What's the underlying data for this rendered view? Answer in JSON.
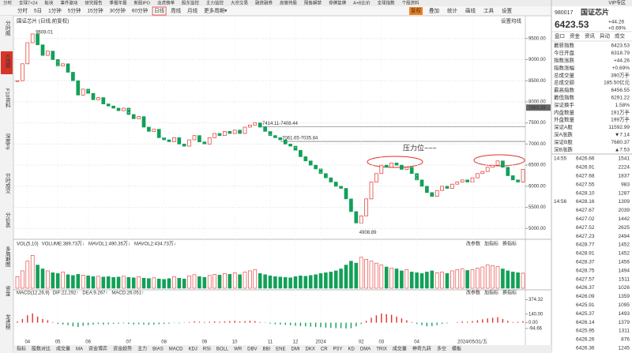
{
  "top_menu": [
    "分时",
    "全球7×24",
    "板块",
    "事件驱动",
    "研究报告",
    "季报年报",
    "新股IPO",
    "龙虎榜单",
    "股东监控",
    "主力监控",
    "大宗交易",
    "融资融券",
    "高管持股",
    "限售解禁",
    "停牌复牌",
    "A+B比价",
    "全球指数",
    "个股资料"
  ],
  "toolbar": {
    "periods": [
      "分时",
      "5日",
      "1分钟",
      "5分钟",
      "15分钟",
      "30分钟",
      "60分钟",
      "日线",
      "周线",
      "月线",
      "更多周期▾"
    ],
    "active_period": "日线",
    "tools": [
      "复权",
      "叠加",
      "统计",
      "画线",
      "工具",
      "设置"
    ],
    "active_tool": "复权",
    "vip": "VIP专区"
  },
  "sidebar": {
    "items": [
      "分时图",
      "K线图",
      "F10资料",
      "深度F9",
      "分时成交",
      "分价表",
      "多周期图",
      "资金",
      "龙虎榜"
    ],
    "active": "K线图"
  },
  "chart_data": {
    "type": "candlestick",
    "title": "国证芯片 (日线,前复权)",
    "settings_label": "设置均线",
    "up_color": "#e0302a",
    "down_color": "#12a058",
    "categories": [
      null,
      null,
      "04",
      null,
      null,
      null,
      null,
      null,
      "05",
      null,
      null,
      null,
      null,
      null,
      "06",
      null,
      null,
      null,
      null,
      null,
      null,
      null,
      "07",
      null,
      null,
      null,
      null,
      null,
      null,
      "08",
      null,
      null,
      null,
      null,
      null,
      null,
      null,
      "09",
      null,
      null,
      null,
      null,
      null,
      "10",
      null,
      null,
      null,
      null,
      null,
      null,
      "11",
      null,
      null,
      null,
      null,
      "12",
      null,
      null,
      null,
      null,
      "2024",
      null,
      null,
      null,
      null,
      null,
      null,
      null,
      "02",
      null,
      null,
      null,
      "03",
      null,
      null,
      null,
      null,
      null,
      null,
      "04",
      null,
      null,
      null,
      null,
      null,
      null,
      null,
      null,
      null,
      null,
      "2024/05/31/五",
      null,
      null,
      null,
      null,
      null,
      null,
      null,
      null,
      null,
      null
    ],
    "close": [
      8500,
      8900,
      9400,
      9608,
      9350,
      9100,
      9200,
      9000,
      8850,
      8900,
      8700,
      8500,
      8160,
      8300,
      8200,
      8050,
      8100,
      7950,
      7900,
      7850,
      7790,
      7850,
      7700,
      7600,
      7650,
      7400,
      7300,
      7350,
      7150,
      7100,
      7055,
      7150,
      7000,
      6950,
      7100,
      7200,
      7050,
      7000,
      7150,
      7250,
      7200,
      7300,
      7250,
      7330,
      7250,
      7400,
      7450,
      7500,
      7400,
      7300,
      7200,
      7150,
      7100,
      7000,
      6950,
      6850,
      6700,
      6600,
      6500,
      6410,
      6300,
      6200,
      6100,
      6000,
      5950,
      5700,
      5400,
      5130,
      5300,
      5700,
      6100,
      6300,
      6500,
      6450,
      6550,
      6500,
      6400,
      6450,
      6300,
      6150,
      6000,
      5850,
      5760,
      5900,
      6000,
      5950,
      6050,
      6100,
      6150,
      6100,
      6200,
      6300,
      6350,
      6450,
      6500,
      6600,
      6450,
      6250,
      6150,
      6100,
      6400
    ],
    "ylim": [
      4800,
      10000
    ],
    "yticks": [
      {
        "value": 9500,
        "label": "9500.00"
      },
      {
        "value": 9000,
        "label": "9000.00"
      },
      {
        "value": 8500,
        "label": "8500.00"
      },
      {
        "value": 8000,
        "label": "8000.00"
      },
      {
        "value": 7500,
        "label": "7500.00"
      },
      {
        "value": 7000,
        "label": "7000.00"
      },
      {
        "value": 6500,
        "label": "6500.00"
      },
      {
        "value": 6000,
        "label": "6000.00"
      },
      {
        "value": 5500,
        "label": "5500.00"
      },
      {
        "value": 5000,
        "label": "5000.00"
      }
    ],
    "grid": true,
    "cursor_price": 7863.29,
    "high_label": 9608.01,
    "low_label": 4908.89,
    "extreme_color": "#d04020",
    "hlines": [
      {
        "label": "7414.11-7408.44",
        "value": 7414.11
      },
      {
        "label": "7061.65-7035.84",
        "value": 7061.65
      }
    ],
    "note": "压力位~~~",
    "note_color": "#e0302a"
  },
  "volume_chart": {
    "type": "bar",
    "header": "VOL(5,10)",
    "items": [
      {
        "text": "VOLUME:389.73万↓",
        "color": "#333"
      },
      {
        "text": "MAVOL1:490.35万↓",
        "color": "#c040c0"
      },
      {
        "text": "MAVOL2:434.73万↓",
        "color": "#d08000"
      }
    ],
    "tools": [
      "改参数",
      "加指标",
      "换指标"
    ],
    "ylim": [
      0,
      1000
    ],
    "values": [
      300,
      450,
      700,
      850,
      600,
      500,
      450,
      400,
      380,
      420,
      350,
      330,
      360,
      340,
      320,
      300,
      310,
      290,
      300,
      280,
      290,
      310,
      280,
      270,
      300,
      260,
      250,
      270,
      240,
      230,
      250,
      300,
      260,
      240,
      320,
      350,
      300,
      280,
      330,
      360,
      340,
      380,
      360,
      400,
      350,
      420,
      450,
      480,
      380,
      350,
      320,
      300,
      290,
      280,
      270,
      300,
      320,
      310,
      330,
      350,
      380,
      400,
      420,
      450,
      500,
      600,
      700,
      650,
      800,
      750,
      700,
      650,
      600,
      550,
      520,
      500,
      450,
      480,
      420,
      400,
      380,
      420,
      450,
      400,
      420,
      380,
      450,
      480,
      500,
      460,
      480,
      520,
      550,
      600,
      580,
      560,
      500,
      450,
      420,
      400,
      390
    ]
  },
  "macd_chart": {
    "type": "bar",
    "header": "MACD(12,26,9)",
    "items": [
      {
        "text": "DIF:22.292↑",
        "color": "#333"
      },
      {
        "text": "DEA:9.267↑",
        "color": "#c040c0"
      },
      {
        "text": "MACD:26.051↑",
        "color": "#d08000"
      }
    ],
    "tools": [
      "改参数",
      "加指标",
      "换指标"
    ],
    "ylim": [
      -250,
      420
    ],
    "yticks": [
      374.32,
      {
        "value": 140,
        "label": "140.00"
      },
      {
        "value": 0,
        "label": "0.00"
      },
      -94.66
    ],
    "values": [
      20,
      60,
      120,
      150,
      100,
      60,
      40,
      10,
      -20,
      -30,
      -40,
      -60,
      -70,
      -50,
      -40,
      -30,
      -20,
      -30,
      -25,
      -20,
      -15,
      -10,
      -20,
      -30,
      -25,
      -30,
      -35,
      -30,
      -25,
      -20,
      -15,
      -5,
      -10,
      -5,
      10,
      20,
      15,
      10,
      15,
      20,
      15,
      20,
      25,
      30,
      20,
      25,
      30,
      25,
      10,
      -5,
      -15,
      -25,
      -30,
      -35,
      -40,
      -50,
      -55,
      -60,
      -65,
      -70,
      -75,
      -80,
      -85,
      -90,
      -90,
      -95,
      -90,
      -60,
      -20,
      30,
      80,
      120,
      150,
      140,
      130,
      100,
      70,
      40,
      10,
      -20,
      -40,
      -60,
      -55,
      -40,
      -20,
      -10,
      0,
      10,
      20,
      15,
      25,
      40,
      55,
      70,
      80,
      90,
      60,
      30,
      10,
      15,
      26.051
    ]
  },
  "bottom_tabs": {
    "items": [
      "指标",
      "股数对比",
      "成交量",
      "MA",
      "资金博弈",
      "资金趋势",
      "主力",
      "BIAS",
      "MACD",
      "KDJ",
      "RSI",
      "BOLL",
      "WR",
      "DBV",
      "BBI",
      "ENE",
      "DMI",
      "DKX",
      "CR",
      "PSY",
      "KD",
      "DMA",
      "TRIX",
      "成交量",
      "神奇九转",
      "多空",
      "模板"
    ],
    "active": "MACD"
  },
  "quote": {
    "code": "980017",
    "name": "国证芯片",
    "price": "6423.53",
    "change": "+44.26",
    "change_pct": "+0.69%",
    "tabs": [
      "盘口",
      "资金",
      "资讯",
      "异动",
      "成交"
    ],
    "fields": [
      {
        "label": "最新指数",
        "value": "6423.53",
        "color": "#e0302a"
      },
      {
        "label": "今日开盘",
        "value": "6318.79",
        "color": "#e0302a"
      },
      {
        "label": "指数涨跌",
        "value": "+44.26",
        "color": "#e0302a"
      },
      {
        "label": "指数涨幅",
        "value": "+0.69%",
        "color": "#e0302a"
      },
      {
        "label": "总成交量",
        "value": "390万手",
        "color": "#333"
      },
      {
        "label": "总成交额",
        "value": "185.50亿元",
        "color": "#2060c0"
      },
      {
        "label": "最高指数",
        "value": "6456.55",
        "color": "#e0302a"
      },
      {
        "label": "最低指数",
        "value": "6291.22",
        "color": "#e0302a"
      },
      {
        "label": "深证换手",
        "value": "1.58%",
        "color": "#333"
      },
      {
        "label": "内盘数量",
        "value": "191万手",
        "color": "#12a058"
      },
      {
        "label": "外盘数量",
        "value": "199万手",
        "color": "#e0302a"
      },
      {
        "label": "深证A股",
        "value": "11592.99",
        "color": "#12a058"
      },
      {
        "label": "深A涨跌",
        "value": "▼7.14",
        "color": "#12a058"
      },
      {
        "label": "深证B股",
        "value": "7680.37",
        "color": "#e0302a"
      },
      {
        "label": "深B涨跌",
        "value": "▲7.53",
        "color": "#e0302a"
      }
    ],
    "trades": [
      {
        "time": "14:55",
        "price": "6426.66",
        "volume": "1541",
        "color": "#12a058"
      },
      {
        "time": null,
        "price": "6426.91",
        "volume": "2224",
        "color": "#e0302a"
      },
      {
        "time": null,
        "price": "6427.68",
        "volume": "1837",
        "color": "#e0302a"
      },
      {
        "time": null,
        "price": "6427.55",
        "volume": "983",
        "color": "#12a058"
      },
      {
        "time": null,
        "price": "6428.10",
        "volume": "1287",
        "color": "#e0302a"
      },
      {
        "time": "14:56",
        "price": "6428.16",
        "volume": "1309",
        "color": "#e0302a"
      },
      {
        "time": null,
        "price": "6427.67",
        "volume": "2039",
        "color": "#12a058"
      },
      {
        "time": null,
        "price": "6427.02",
        "volume": "1442",
        "color": "#12a058"
      },
      {
        "time": null,
        "price": "6427.52",
        "volume": "2625",
        "color": "#e0302a"
      },
      {
        "time": null,
        "price": "6427.23",
        "volume": "2494",
        "color": "#12a058"
      },
      {
        "time": null,
        "price": "6428.77",
        "volume": "1452",
        "color": "#e0302a"
      },
      {
        "time": null,
        "price": "6428.91",
        "volume": "1452",
        "color": "#e0302a"
      },
      {
        "time": null,
        "price": "6428.37",
        "volume": "1456",
        "color": "#12a058"
      },
      {
        "time": null,
        "price": "6428.75",
        "volume": "1494",
        "color": "#e0302a"
      },
      {
        "time": null,
        "price": "6427.57",
        "volume": "1511",
        "color": "#12a058"
      },
      {
        "time": null,
        "price": "6426.37",
        "volume": "1026",
        "color": "#12a058"
      },
      {
        "time": null,
        "price": "6426.09",
        "volume": "1359",
        "color": "#12a058"
      },
      {
        "time": null,
        "price": "6425.91",
        "volume": "1095",
        "color": "#12a058"
      },
      {
        "time": null,
        "price": "6425.37",
        "volume": "1493",
        "color": "#12a058"
      },
      {
        "time": null,
        "price": "6426.14",
        "volume": "1379",
        "color": "#e0302a"
      },
      {
        "time": null,
        "price": "6425.95",
        "volume": "1311",
        "color": "#12a058"
      },
      {
        "time": null,
        "price": "6426.26",
        "volume": "876",
        "color": "#e0302a"
      },
      {
        "time": null,
        "price": "6426.36",
        "volume": "1245",
        "color": "#e0302a"
      }
    ]
  }
}
